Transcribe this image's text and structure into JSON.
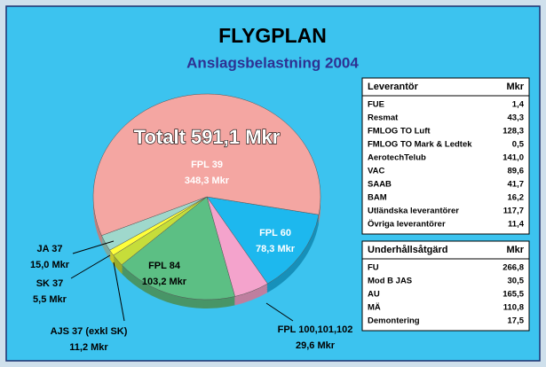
{
  "chart_data": {
    "type": "pie",
    "title": "FLYGPLAN",
    "subtitle": "Anslagsbelastning 2004",
    "annotation": "Totalt 591,1 Mkr",
    "categories": [
      "FPL 60",
      "FPL 100,101,102",
      "FPL 84",
      "AJS 37 (exkl SK)",
      "SK 37",
      "JA 37",
      "FPL 39"
    ],
    "values": [
      78.3,
      29.6,
      103.2,
      11.2,
      5.5,
      15.0,
      348.3
    ],
    "value_labels": [
      "78,3 Mkr",
      "29,6 Mkr",
      "103,2 Mkr",
      "11,2 Mkr",
      "5,5 Mkr",
      "15,0 Mkr",
      "348,3 Mkr"
    ],
    "colors": [
      "#1db8ee",
      "#f4a3cc",
      "#5cbf84",
      "#c6dd3a",
      "#ffff3a",
      "#9fd8cc",
      "#f4a6a2"
    ],
    "tables": [
      {
        "header": [
          "Leverantör",
          "Mkr"
        ],
        "rows": [
          [
            "FUE",
            "1,4"
          ],
          [
            "Resmat",
            "43,3"
          ],
          [
            "FMLOG TO Luft",
            "128,3"
          ],
          [
            "FMLOG TO Mark & Ledtek",
            "0,5"
          ],
          [
            "AerotechTelub",
            "141,0"
          ],
          [
            "VAC",
            "89,6"
          ],
          [
            "SAAB",
            "41,7"
          ],
          [
            "BAM",
            "16,2"
          ],
          [
            "Utländska leverantörer",
            "117,7"
          ],
          [
            "Övriga leverantörer",
            "11,4"
          ]
        ]
      },
      {
        "header": [
          "Underhållsåtgärd",
          "Mkr"
        ],
        "rows": [
          [
            "FU",
            "266,8"
          ],
          [
            "Mod B JAS",
            "30,5"
          ],
          [
            "AU",
            "165,5"
          ],
          [
            "MÄ",
            "110,8"
          ],
          [
            "Demontering",
            "17,5"
          ]
        ]
      }
    ]
  }
}
